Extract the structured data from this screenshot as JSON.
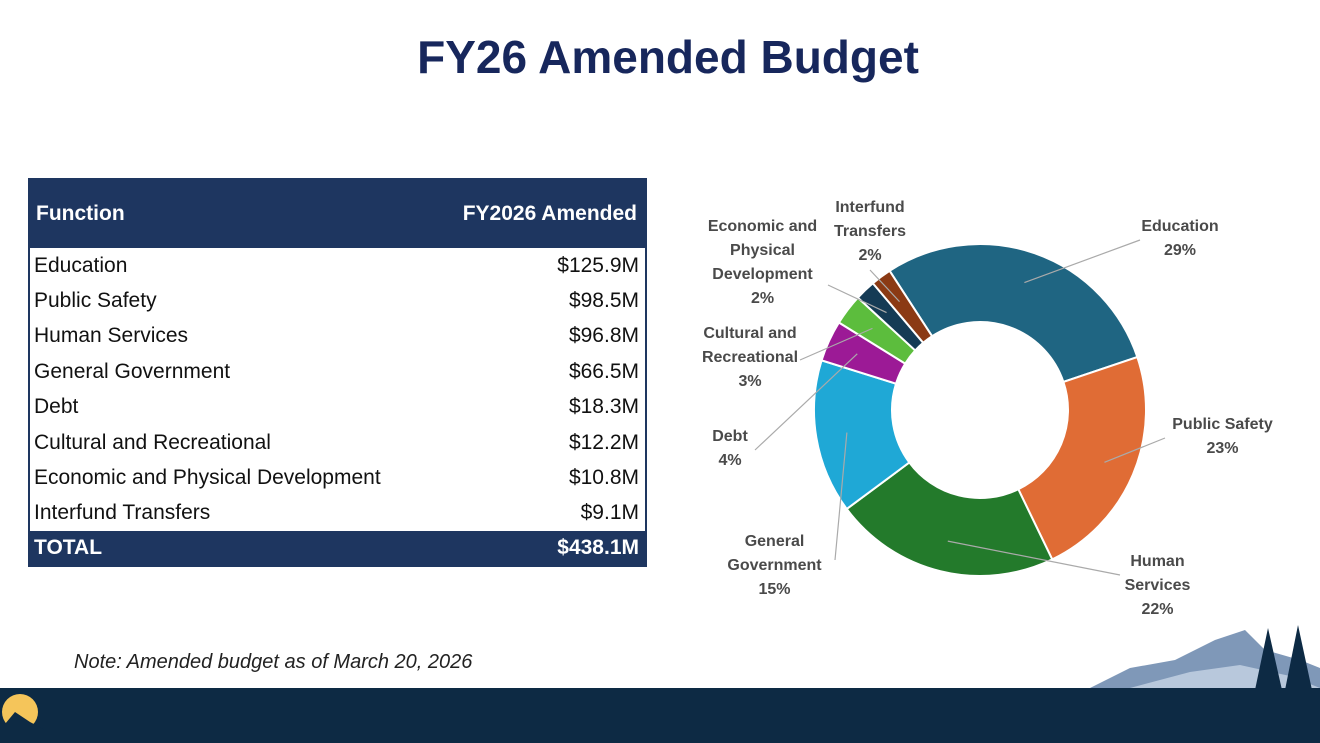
{
  "title": "FY26 Amended Budget",
  "table": {
    "header": [
      "Function",
      "FY2026 Amended"
    ],
    "rows": [
      [
        "Education",
        "$125.9M"
      ],
      [
        "Public Safety",
        "$98.5M"
      ],
      [
        "Human Services",
        "$96.8M"
      ],
      [
        "General Government",
        "$66.5M"
      ],
      [
        "Debt",
        "$18.3M"
      ],
      [
        "Cultural and Recreational",
        "$12.2M"
      ],
      [
        "Economic and Physical Development",
        "$10.8M"
      ],
      [
        "Interfund Transfers",
        "$9.1M"
      ]
    ],
    "total": [
      "TOTAL",
      "$438.1M"
    ]
  },
  "note": "Note: Amended budget as of March 20, 2026",
  "chart_data": {
    "type": "donut",
    "categories": [
      "Education",
      "Public Safety",
      "Human Services",
      "General Government",
      "Debt",
      "Cultural and Recreational",
      "Economic and Physical Development",
      "Interfund Transfers"
    ],
    "values": [
      29,
      23,
      22,
      15,
      4,
      3,
      2,
      2
    ],
    "value_labels": [
      "29%",
      "23%",
      "22%",
      "15%",
      "4%",
      "3%",
      "2%",
      "2%"
    ],
    "colors": [
      "#1f6582",
      "#e06c35",
      "#237a2b",
      "#1fa8d6",
      "#9c1a96",
      "#5cbd3d",
      "#153b55",
      "#8b3a14"
    ]
  }
}
